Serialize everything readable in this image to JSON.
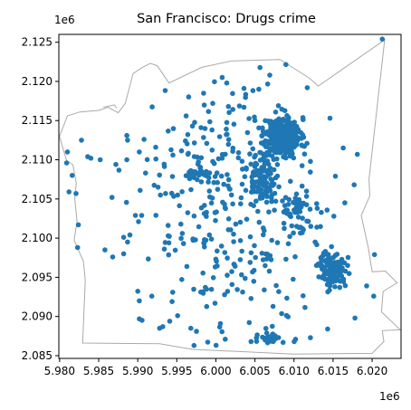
{
  "chart_data": {
    "type": "scatter",
    "title": "San Francisco: Drugs crime",
    "xlabel": "",
    "ylabel": "",
    "xlim": [
      5979900,
      6023700
    ],
    "ylim": [
      2084650,
      2126000
    ],
    "x_ticks": [
      5980000,
      5985000,
      5990000,
      5995000,
      6000000,
      6005000,
      6010000,
      6015000,
      6020000
    ],
    "x_tick_labels": [
      "5.980",
      "5.985",
      "5.990",
      "5.995",
      "6.000",
      "6.005",
      "6.010",
      "6.015",
      "6.020"
    ],
    "y_ticks": [
      2085000,
      2090000,
      2095000,
      2100000,
      2105000,
      2110000,
      2115000,
      2120000,
      2125000
    ],
    "y_tick_labels": [
      "2.085",
      "2.090",
      "2.095",
      "2.100",
      "2.105",
      "2.110",
      "2.115",
      "2.120",
      "2.125"
    ],
    "x_offset_label": "1e6",
    "y_offset_label": "1e6",
    "grid": false,
    "boundary_color": "#aaaaaa",
    "point_color": "#1f77b4",
    "boundary": [
      [
        5979978,
        2112987
      ],
      [
        5980893,
        2109891
      ],
      [
        5981695,
        2109373
      ],
      [
        5982141,
        2106996
      ],
      [
        5981929,
        2105105
      ],
      [
        5982232,
        2102125
      ],
      [
        5981855,
        2099748
      ],
      [
        5983038,
        2097029
      ],
      [
        5983280,
        2094656
      ],
      [
        5982943,
        2086617
      ],
      [
        5992800,
        2086516
      ],
      [
        5997000,
        2085800
      ],
      [
        6010000,
        2085200
      ],
      [
        6020000,
        2085300
      ],
      [
        6021500,
        2086800
      ],
      [
        6021300,
        2088200
      ],
      [
        6023600,
        2088300
      ],
      [
        6021200,
        2090600
      ],
      [
        6021400,
        2093200
      ],
      [
        6023200,
        2094300
      ],
      [
        6021700,
        2095800
      ],
      [
        6020000,
        2095700
      ],
      [
        6019500,
        2098800
      ],
      [
        6018600,
        2102900
      ],
      [
        6019700,
        2105400
      ],
      [
        6019600,
        2107500
      ],
      [
        6021600,
        2125300
      ],
      [
        6013100,
        2119400
      ],
      [
        6012000,
        2120400
      ],
      [
        6008200,
        2122800
      ],
      [
        6002000,
        2122600
      ],
      [
        5998200,
        2121800
      ],
      [
        5994000,
        2119800
      ],
      [
        5992500,
        2122000
      ],
      [
        5991600,
        2122300
      ],
      [
        5990600,
        2121800
      ],
      [
        5989400,
        2121000
      ],
      [
        5988400,
        2117200
      ],
      [
        5987500,
        2116000
      ],
      [
        5986200,
        2116700
      ],
      [
        5985000,
        2116300
      ],
      [
        5982600,
        2116100
      ],
      [
        5981000,
        2115600
      ],
      [
        5979978,
        2112987
      ]
    ],
    "interior_boundary": [
      [
        5985600,
        2116700
      ],
      [
        5987000,
        2117000
      ],
      [
        5987300,
        2116600
      ]
    ],
    "points_clusters": [
      {
        "cx": 6008600,
        "cy": 2113000,
        "sx": 1100,
        "sy": 1200,
        "n": 320,
        "seed": 11
      },
      {
        "cx": 6005800,
        "cy": 2107200,
        "sx": 900,
        "sy": 1200,
        "n": 90,
        "seed": 23
      },
      {
        "cx": 6015000,
        "cy": 2096000,
        "sx": 900,
        "sy": 1200,
        "n": 110,
        "seed": 37
      },
      {
        "cx": 6011000,
        "cy": 2103000,
        "sx": 1500,
        "sy": 1500,
        "n": 50,
        "seed": 41
      },
      {
        "cx": 5998200,
        "cy": 2108300,
        "sx": 1200,
        "sy": 300,
        "n": 22,
        "seed": 53
      },
      {
        "cx": 6006500,
        "cy": 2087200,
        "sx": 900,
        "sy": 300,
        "n": 25,
        "seed": 61
      },
      {
        "cx": 6002000,
        "cy": 2100000,
        "sx": 6000,
        "sy": 8000,
        "n": 200,
        "seed": 71
      },
      {
        "cx": 6001500,
        "cy": 2111000,
        "sx": 5000,
        "sy": 4500,
        "n": 90,
        "seed": 83
      }
    ],
    "points_fixed": [
      [
        6021300,
        2125400
      ],
      [
        5981000,
        2111000
      ],
      [
        5980900,
        2109600
      ],
      [
        5981600,
        2108000
      ],
      [
        5981200,
        2105900
      ],
      [
        5982100,
        2105700
      ],
      [
        5982400,
        2101700
      ],
      [
        5982300,
        2098800
      ],
      [
        5984000,
        2110200
      ],
      [
        5982800,
        2112500
      ],
      [
        5983600,
        2110400
      ],
      [
        5985200,
        2110000
      ],
      [
        5987200,
        2109400
      ],
      [
        5986700,
        2105200
      ],
      [
        5985800,
        2098500
      ],
      [
        5986800,
        2097600
      ],
      [
        5989000,
        2100400
      ],
      [
        5988700,
        2099500
      ],
      [
        5988200,
        2098000
      ],
      [
        5988200,
        2100100
      ],
      [
        5990300,
        2106100
      ],
      [
        5990100,
        2102100
      ],
      [
        5989700,
        2102900
      ],
      [
        5990500,
        2102900
      ],
      [
        5991800,
        2092600
      ],
      [
        5990200,
        2089700
      ],
      [
        5990200,
        2092000
      ],
      [
        5993400,
        2098600
      ],
      [
        5993900,
        2100300
      ],
      [
        5994400,
        2091900
      ],
      [
        5992800,
        2088500
      ],
      [
        5993200,
        2088700
      ],
      [
        5994100,
        2089400
      ],
      [
        5996800,
        2088500
      ],
      [
        5995100,
        2090100
      ],
      [
        5995700,
        2100600
      ],
      [
        5996800,
        2108600
      ],
      [
        5995100,
        2105500
      ],
      [
        5992900,
        2105500
      ],
      [
        5992600,
        2106500
      ],
      [
        5991000,
        2108300
      ],
      [
        5990200,
        2111000
      ],
      [
        5988600,
        2110000
      ],
      [
        5988700,
        2112500
      ],
      [
        5990800,
        2112600
      ],
      [
        5996100,
        2112400
      ],
      [
        5992300,
        2111600
      ],
      [
        5994500,
        2110600
      ],
      [
        5997200,
        2086300
      ],
      [
        6001200,
        2087100
      ],
      [
        6004500,
        2086800
      ],
      [
        6008600,
        2086700
      ],
      [
        6010200,
        2087100
      ],
      [
        6012100,
        2087300
      ],
      [
        6014300,
        2088400
      ],
      [
        6017800,
        2089800
      ],
      [
        6020200,
        2092600
      ],
      [
        6019300,
        2093900
      ],
      [
        6020300,
        2097900
      ],
      [
        6016500,
        2104500
      ],
      [
        6017700,
        2106800
      ],
      [
        6018100,
        2110700
      ],
      [
        6016300,
        2111500
      ],
      [
        6015300,
        2107900
      ],
      [
        6015100,
        2102800
      ],
      [
        6012900,
        2104400
      ],
      [
        6011600,
        2106000
      ],
      [
        6012100,
        2109800
      ],
      [
        6014600,
        2115300
      ],
      [
        6011700,
        2119200
      ],
      [
        6005500,
        2119000
      ],
      [
        6003600,
        2119100
      ],
      [
        6000800,
        2120500
      ],
      [
        6001400,
        2119800
      ],
      [
        6006900,
        2120800
      ],
      [
        6008000,
        2116900
      ],
      [
        6005000,
        2115000
      ],
      [
        6003600,
        2116700
      ],
      [
        6002900,
        2110900
      ],
      [
        6000800,
        2110200
      ],
      [
        5999500,
        2113800
      ],
      [
        5998100,
        2114100
      ],
      [
        5999600,
        2117200
      ],
      [
        6001600,
        2116800
      ]
    ],
    "point_radius_px": 2.8
  }
}
